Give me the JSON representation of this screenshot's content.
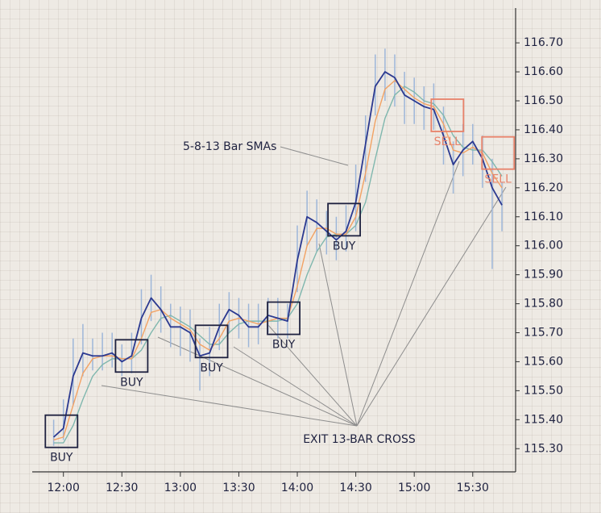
{
  "chart_data": {
    "type": "line",
    "x": [
      715,
      720,
      725,
      730,
      735,
      740,
      745,
      750,
      755,
      760,
      765,
      770,
      775,
      780,
      785,
      790,
      795,
      800,
      805,
      810,
      815,
      820,
      825,
      830,
      835,
      840,
      845,
      850,
      855,
      860,
      865,
      870,
      875,
      880,
      885,
      890,
      895,
      900,
      905,
      910,
      915,
      920,
      925,
      930,
      935,
      940,
      945
    ],
    "price_bars": {
      "color": "#9db6d9",
      "low": [
        115.31,
        115.33,
        115.45,
        115.55,
        115.57,
        115.57,
        115.58,
        115.55,
        115.56,
        115.66,
        115.74,
        115.7,
        115.65,
        115.62,
        115.6,
        115.5,
        115.55,
        115.64,
        115.7,
        115.68,
        115.65,
        115.66,
        115.7,
        115.68,
        115.68,
        115.84,
        116.0,
        115.98,
        115.97,
        115.95,
        115.98,
        116.05,
        116.22,
        116.45,
        116.5,
        116.48,
        116.42,
        116.42,
        116.4,
        116.4,
        116.28,
        116.18,
        116.24,
        116.28,
        116.2,
        115.92,
        116.05
      ],
      "high": [
        115.4,
        115.47,
        115.68,
        115.73,
        115.68,
        115.7,
        115.7,
        115.66,
        115.7,
        115.85,
        115.9,
        115.86,
        115.8,
        115.79,
        115.78,
        115.68,
        115.72,
        115.8,
        115.84,
        115.82,
        115.8,
        115.8,
        115.82,
        115.82,
        115.8,
        116.07,
        116.19,
        116.16,
        116.12,
        116.1,
        116.14,
        116.28,
        116.45,
        116.66,
        116.68,
        116.66,
        116.6,
        116.58,
        116.55,
        116.56,
        116.48,
        116.36,
        116.42,
        116.42,
        116.38,
        116.3,
        116.22
      ]
    },
    "series": [
      {
        "color": "#7fb7ae",
        "values": [
          115.32,
          115.32,
          115.38,
          115.47,
          115.55,
          115.59,
          115.61,
          115.61,
          115.61,
          115.64,
          115.7,
          115.75,
          115.76,
          115.74,
          115.72,
          115.69,
          115.66,
          115.66,
          115.7,
          115.73,
          115.74,
          115.74,
          115.74,
          115.74,
          115.75,
          115.8,
          115.9,
          115.98,
          116.03,
          116.04,
          116.04,
          116.07,
          116.15,
          116.3,
          116.44,
          116.52,
          116.55,
          116.53,
          116.5,
          116.49,
          116.45,
          116.38,
          116.34,
          116.33,
          116.33,
          116.29,
          116.24
        ]
      },
      {
        "color": "#f2a263",
        "values": [
          115.33,
          115.34,
          115.45,
          115.56,
          115.61,
          115.62,
          115.62,
          115.61,
          115.61,
          115.68,
          115.77,
          115.78,
          115.75,
          115.73,
          115.71,
          115.66,
          115.64,
          115.68,
          115.74,
          115.75,
          115.74,
          115.73,
          115.74,
          115.75,
          115.75,
          115.86,
          116.0,
          116.06,
          116.06,
          116.04,
          116.04,
          116.1,
          116.25,
          116.43,
          116.54,
          116.57,
          116.54,
          116.51,
          116.49,
          116.48,
          116.42,
          116.33,
          116.32,
          116.34,
          116.32,
          116.25,
          116.2
        ]
      },
      {
        "color": "#2b3990",
        "values": [
          115.34,
          115.37,
          115.55,
          115.63,
          115.62,
          115.62,
          115.63,
          115.6,
          115.62,
          115.75,
          115.82,
          115.78,
          115.72,
          115.72,
          115.7,
          115.62,
          115.63,
          115.72,
          115.78,
          115.76,
          115.72,
          115.72,
          115.76,
          115.75,
          115.74,
          115.95,
          116.1,
          116.08,
          116.05,
          116.02,
          116.05,
          116.15,
          116.35,
          116.55,
          116.6,
          116.58,
          116.52,
          116.5,
          116.48,
          116.47,
          116.38,
          116.28,
          116.33,
          116.36,
          116.3,
          116.2,
          116.14
        ]
      }
    ],
    "xlim": [
      704,
      952
    ],
    "ylim": [
      115.22,
      116.82
    ],
    "xticks": [
      {
        "value": 720,
        "label": "12:00"
      },
      {
        "value": 750,
        "label": "12:30"
      },
      {
        "value": 780,
        "label": "13:00"
      },
      {
        "value": 810,
        "label": "13:30"
      },
      {
        "value": 840,
        "label": "14:00"
      },
      {
        "value": 870,
        "label": "14:30"
      },
      {
        "value": 900,
        "label": "15:00"
      },
      {
        "value": 930,
        "label": "15:30"
      }
    ],
    "yticks": [
      {
        "value": 115.3,
        "label": "115.30"
      },
      {
        "value": 115.4,
        "label": "115.40"
      },
      {
        "value": 115.5,
        "label": "115.50"
      },
      {
        "value": 115.6,
        "label": "115.60"
      },
      {
        "value": 115.7,
        "label": "115.70"
      },
      {
        "value": 115.8,
        "label": "115.80"
      },
      {
        "value": 115.9,
        "label": "115.90"
      },
      {
        "value": 116.0,
        "label": "116.00"
      },
      {
        "value": 116.1,
        "label": "116.10"
      },
      {
        "value": 116.2,
        "label": "116.20"
      },
      {
        "value": 116.3,
        "label": "116.30"
      },
      {
        "value": 116.4,
        "label": "116.40"
      },
      {
        "value": 116.5,
        "label": "116.50"
      },
      {
        "value": 116.6,
        "label": "116.60"
      },
      {
        "value": 116.7,
        "label": "116.70"
      }
    ],
    "annotations": [
      {
        "text": "BUY",
        "color": "#1f2240",
        "x": 719,
        "y": 115.36
      },
      {
        "text": "BUY",
        "color": "#1f2240",
        "x": 755,
        "y": 115.62
      },
      {
        "text": "BUY",
        "color": "#1f2240",
        "x": 796,
        "y": 115.67
      },
      {
        "text": "BUY",
        "color": "#1f2240",
        "x": 833,
        "y": 115.75
      },
      {
        "text": "BUY",
        "color": "#1f2240",
        "x": 864,
        "y": 116.09
      },
      {
        "text": "SELL",
        "color": "#e8826a",
        "x": 917,
        "y": 116.45
      },
      {
        "text": "SELL",
        "color": "#e8826a",
        "x": 943,
        "y": 116.32
      }
    ],
    "sma_label": "5-8-13 Bar SMAs",
    "exit_label": "EXIT 13-BAR CROSS"
  }
}
